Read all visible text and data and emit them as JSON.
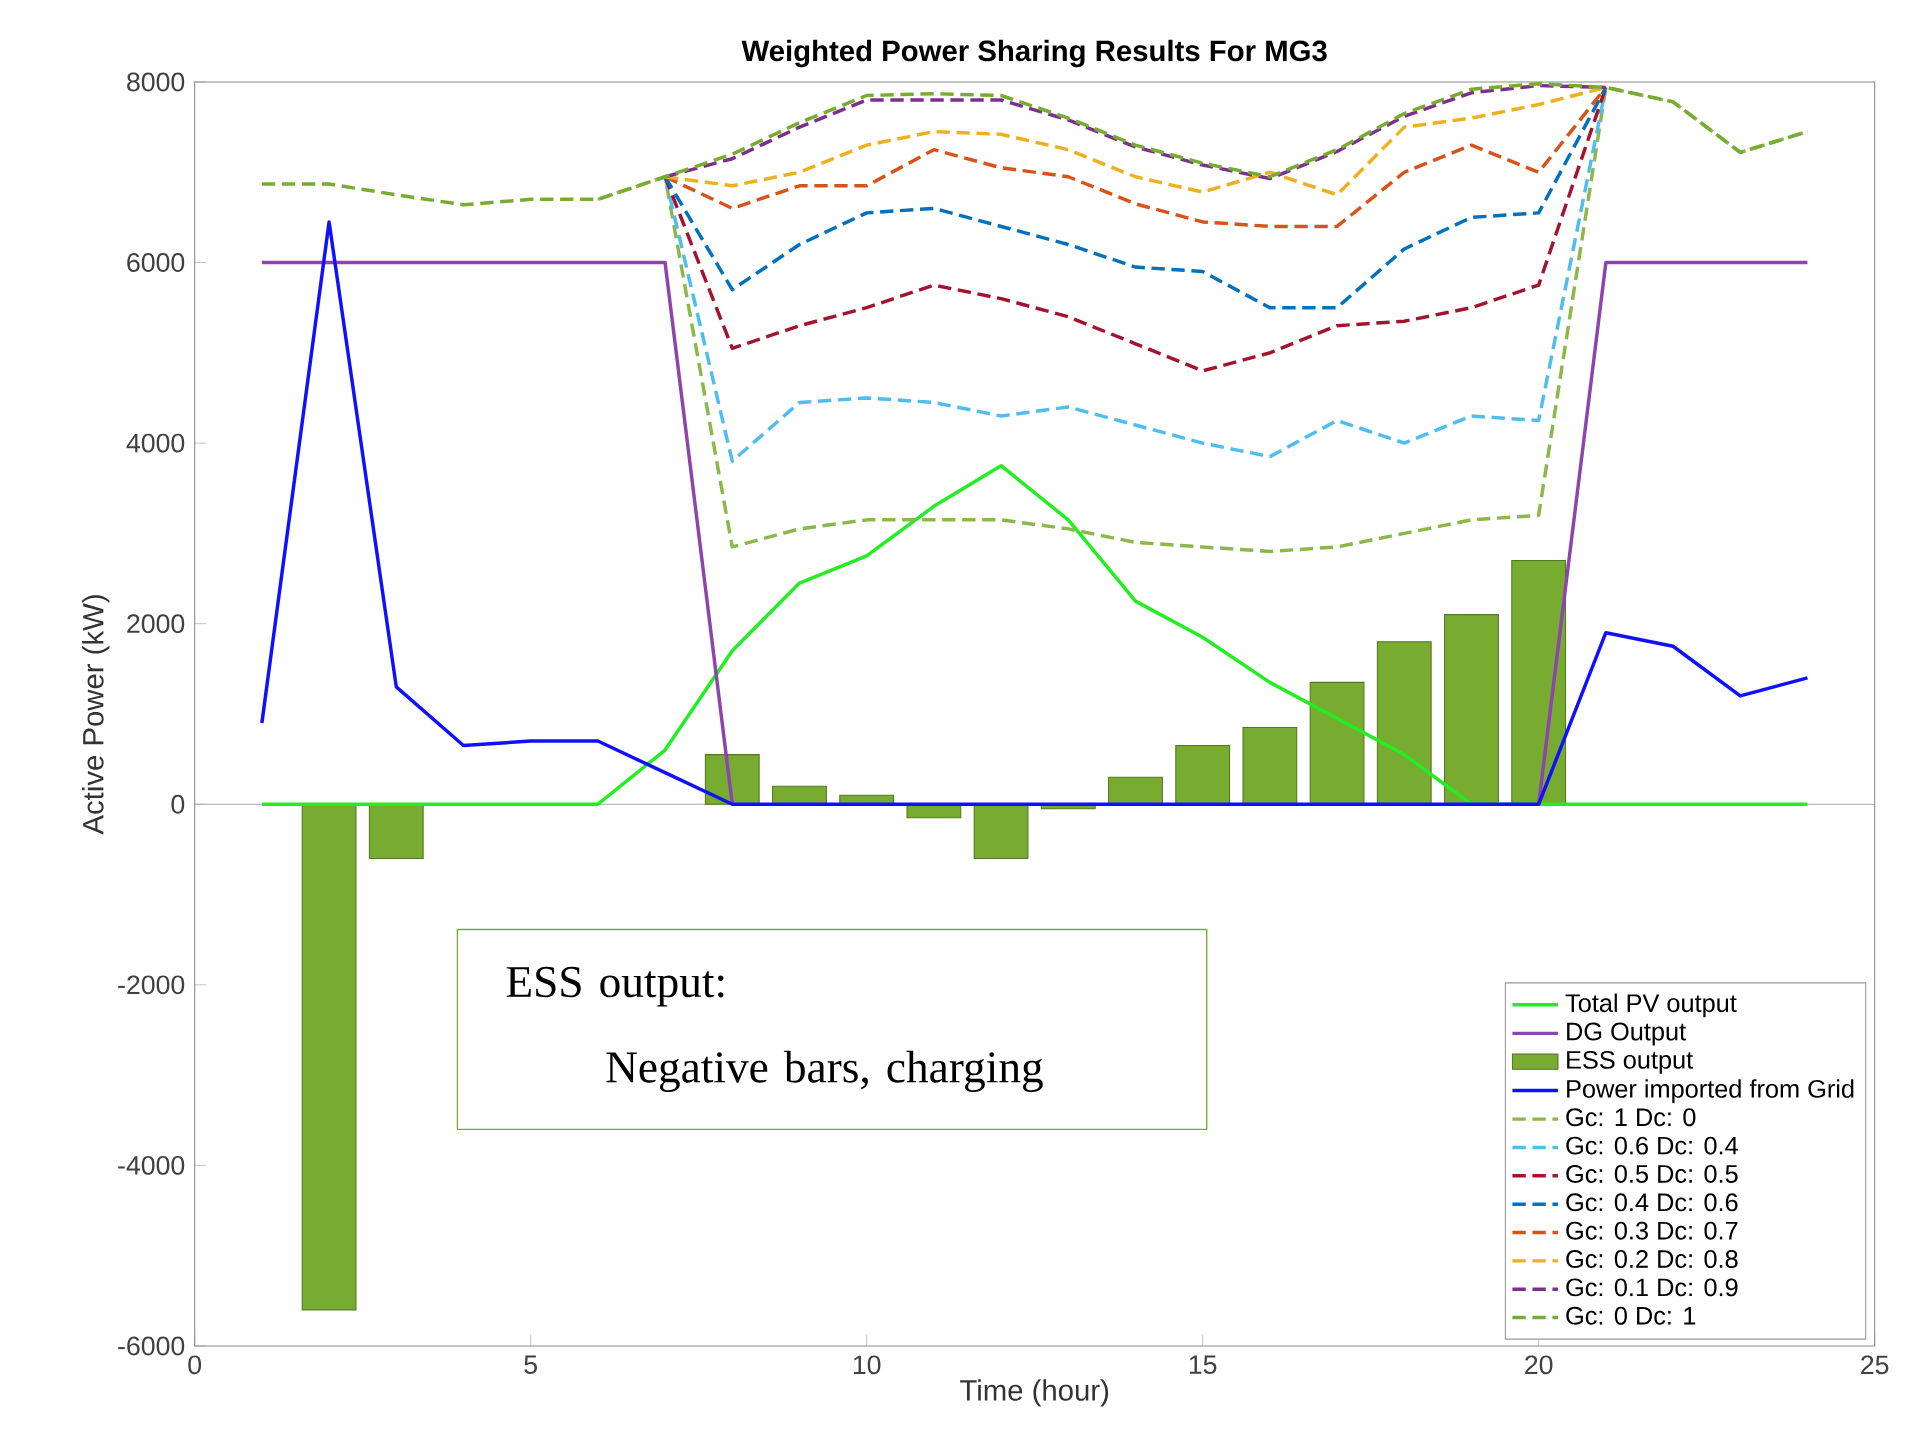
{
  "chart_data": {
    "type": "line",
    "title": "Weighted Power Sharing Results For MG3",
    "xlabel": "Time (hour)",
    "ylabel": "Active Power (kW)",
    "x": [
      1,
      2,
      3,
      4,
      5,
      6,
      7,
      8,
      9,
      10,
      11,
      12,
      13,
      14,
      15,
      16,
      17,
      18,
      19,
      20,
      21,
      22,
      23,
      24
    ],
    "xlim": [
      0,
      25
    ],
    "xticks": [
      0,
      5,
      10,
      15,
      20,
      25
    ],
    "ylim": [
      -6000,
      8000
    ],
    "yticks": [
      -6000,
      -4000,
      -2000,
      0,
      2000,
      4000,
      6000,
      8000
    ],
    "legend": "bottom right",
    "annotations": [
      "ESS output:",
      "Negative bars, charging"
    ],
    "series": [
      {
        "name": "Total PV output",
        "color": "#22ee22",
        "line_style": "solid",
        "values": [
          0,
          0,
          0,
          0,
          0,
          0,
          600,
          1700,
          2450,
          2750,
          3300,
          3750,
          3150,
          2250,
          1850,
          1350,
          950,
          550,
          0,
          0,
          0,
          0,
          0,
          0
        ]
      },
      {
        "name": "DG Output",
        "color": "#8e44ad",
        "line_style": "solid",
        "values": [
          6000,
          6000,
          6000,
          6000,
          6000,
          6000,
          6000,
          0,
          null,
          null,
          null,
          null,
          null,
          null,
          null,
          null,
          null,
          null,
          null,
          0,
          6000,
          6000,
          6000,
          6000
        ]
      },
      {
        "name": "ESS output",
        "type": "bar",
        "color": "#77ac30",
        "values": [
          null,
          -5600,
          -600,
          null,
          null,
          null,
          null,
          550,
          200,
          100,
          -150,
          -600,
          -50,
          300,
          650,
          850,
          1350,
          1800,
          2100,
          2700,
          null,
          null,
          null,
          null
        ]
      },
      {
        "name": "Power imported from Grid",
        "color": "#1010ff",
        "line_style": "solid",
        "values": [
          900,
          6450,
          1300,
          650,
          700,
          700,
          350,
          0,
          0,
          0,
          0,
          0,
          0,
          0,
          0,
          0,
          0,
          0,
          0,
          0,
          1900,
          1750,
          1200,
          1400
        ]
      },
      {
        "name": "Gc: 1 Dc: 0",
        "color": "#8cb84a",
        "line_style": "dashed",
        "values": [
          null,
          null,
          null,
          null,
          null,
          6700,
          6950,
          2850,
          3050,
          3150,
          3150,
          3150,
          3050,
          2900,
          2850,
          2800,
          2850,
          3000,
          3150,
          3200,
          7940,
          7780,
          7220,
          7450
        ]
      },
      {
        "name": "Gc: 0.6 Dc: 0.4",
        "color": "#4dbeee",
        "line_style": "dashed",
        "values": [
          null,
          null,
          null,
          null,
          null,
          null,
          6950,
          3800,
          4450,
          4500,
          4450,
          4300,
          4400,
          4200,
          4000,
          3850,
          4250,
          4000,
          4300,
          4250,
          7940,
          null,
          null,
          null
        ]
      },
      {
        "name": "Gc: 0.5 Dc: 0.5",
        "color": "#a2142f",
        "line_style": "dashed",
        "values": [
          null,
          null,
          null,
          null,
          null,
          null,
          6950,
          5050,
          5300,
          5500,
          5750,
          5600,
          5400,
          5100,
          4800,
          5000,
          5300,
          5350,
          5500,
          5750,
          7940,
          null,
          null,
          null
        ]
      },
      {
        "name": "Gc: 0.4 Dc: 0.6",
        "color": "#0072bd",
        "line_style": "dashed",
        "values": [
          null,
          null,
          null,
          null,
          null,
          null,
          6950,
          5700,
          6200,
          6550,
          6600,
          6400,
          6200,
          5950,
          5900,
          5500,
          5500,
          6150,
          6500,
          6550,
          7940,
          null,
          null,
          null
        ]
      },
      {
        "name": "Gc: 0.3 Dc: 0.7",
        "color": "#d95319",
        "line_style": "dashed",
        "values": [
          null,
          null,
          null,
          null,
          null,
          null,
          6950,
          6600,
          6850,
          6850,
          7250,
          7050,
          6950,
          6650,
          6450,
          6400,
          6400,
          7000,
          7300,
          7000,
          7940,
          null,
          null,
          null
        ]
      },
      {
        "name": "Gc: 0.2 Dc: 0.8",
        "color": "#edb120",
        "line_style": "dashed",
        "values": [
          null,
          null,
          null,
          null,
          null,
          null,
          6950,
          6850,
          7000,
          7300,
          7450,
          7420,
          7250,
          6950,
          6780,
          7000,
          6750,
          7500,
          7600,
          7750,
          7940,
          null,
          null,
          null
        ]
      },
      {
        "name": "Gc: 0.1 Dc: 0.9",
        "color": "#7e2f8e",
        "line_style": "dashed",
        "values": [
          null,
          null,
          null,
          null,
          null,
          null,
          6950,
          7150,
          7500,
          7800,
          7800,
          7800,
          7580,
          7280,
          7080,
          6930,
          7230,
          7620,
          7880,
          7960,
          7940,
          null,
          null,
          null
        ]
      },
      {
        "name": "Gc: 0 Dc: 1",
        "color": "#77ac30",
        "line_style": "dashed",
        "values": [
          6870,
          6870,
          6750,
          6640,
          6700,
          6700,
          6950,
          7200,
          7550,
          7850,
          7870,
          7850,
          7600,
          7300,
          7100,
          6950,
          7250,
          7650,
          7920,
          7980,
          7940,
          7780,
          7220,
          7450
        ]
      }
    ]
  }
}
